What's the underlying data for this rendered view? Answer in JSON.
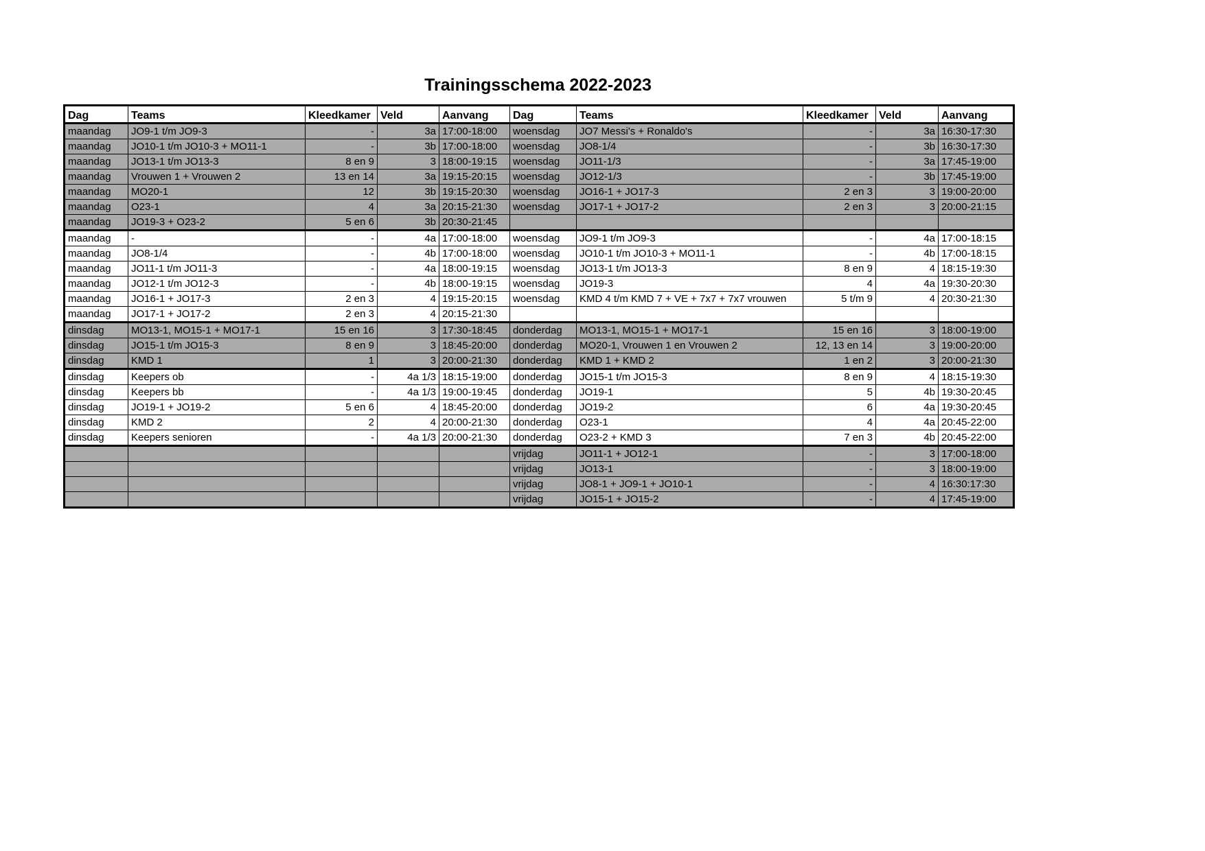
{
  "title": "Trainingsschema 2022-2023",
  "colors": {
    "row_shade": "#ABABAB",
    "grid": "#000000",
    "page_background": "#FFFFFF"
  },
  "table": {
    "headers": [
      "Dag",
      "Teams",
      "Kleedkamer",
      "Veld",
      "Aanvang"
    ],
    "thick_top_rows": [
      7,
      13,
      16,
      21
    ],
    "left_rows": [
      {
        "dag": "maandag",
        "teams": "JO9-1 t/m JO9-3",
        "kleedkamer": "-",
        "veld": "3a",
        "aanvang": "17:00-18:00",
        "shade": "gray"
      },
      {
        "dag": "maandag",
        "teams": "JO10-1 t/m JO10-3 + MO11-1",
        "kleedkamer": "-",
        "veld": "3b",
        "aanvang": "17:00-18:00",
        "shade": "gray"
      },
      {
        "dag": "maandag",
        "teams": "JO13-1 t/m JO13-3",
        "kleedkamer": "8 en 9",
        "veld": "3",
        "aanvang": "18:00-19:15",
        "shade": "gray"
      },
      {
        "dag": "maandag",
        "teams": "Vrouwen 1 + Vrouwen 2",
        "kleedkamer": "13 en 14",
        "veld": "3a",
        "aanvang": "19:15-20:15",
        "shade": "gray"
      },
      {
        "dag": "maandag",
        "teams": "MO20-1",
        "kleedkamer": "12",
        "veld": "3b",
        "aanvang": "19:15-20:30",
        "shade": "gray"
      },
      {
        "dag": "maandag",
        "teams": "O23-1",
        "kleedkamer": "4",
        "veld": "3a",
        "aanvang": "20:15-21:30",
        "shade": "gray"
      },
      {
        "dag": "maandag",
        "teams": "JO19-3 + O23-2",
        "kleedkamer": "5 en 6",
        "veld": "3b",
        "aanvang": "20:30-21:45",
        "shade": "gray"
      },
      {
        "dag": "maandag",
        "teams": "-",
        "kleedkamer": "-",
        "veld": "4a",
        "aanvang": "17:00-18:00",
        "shade": "white"
      },
      {
        "dag": "maandag",
        "teams": "JO8-1/4",
        "kleedkamer": "-",
        "veld": "4b",
        "aanvang": "17:00-18:00",
        "shade": "white"
      },
      {
        "dag": "maandag",
        "teams": "JO11-1 t/m JO11-3",
        "kleedkamer": "-",
        "veld": "4a",
        "aanvang": "18:00-19:15",
        "shade": "white"
      },
      {
        "dag": "maandag",
        "teams": "JO12-1 t/m JO12-3",
        "kleedkamer": "-",
        "veld": "4b",
        "aanvang": "18:00-19:15",
        "shade": "white"
      },
      {
        "dag": "maandag",
        "teams": "JO16-1 + JO17-3",
        "kleedkamer": "2 en 3",
        "veld": "4",
        "aanvang": "19:15-20:15",
        "shade": "white"
      },
      {
        "dag": "maandag",
        "teams": "JO17-1 + JO17-2",
        "kleedkamer": "2 en 3",
        "veld": "4",
        "aanvang": "20:15-21:30",
        "shade": "white"
      },
      {
        "dag": "dinsdag",
        "teams": "MO13-1, MO15-1 + MO17-1",
        "kleedkamer": "15 en 16",
        "veld": "3",
        "aanvang": "17:30-18:45",
        "shade": "gray"
      },
      {
        "dag": "dinsdag",
        "teams": "JO15-1 t/m JO15-3",
        "kleedkamer": "8 en 9",
        "veld": "3",
        "aanvang": "18:45-20:00",
        "shade": "gray"
      },
      {
        "dag": "dinsdag",
        "teams": "KMD 1",
        "kleedkamer": "1",
        "veld": "3",
        "aanvang": "20:00-21:30",
        "shade": "gray"
      },
      {
        "dag": "dinsdag",
        "teams": "Keepers ob",
        "kleedkamer": "-",
        "veld": "4a 1/3",
        "aanvang": "18:15-19:00",
        "shade": "white"
      },
      {
        "dag": "dinsdag",
        "teams": "Keepers bb",
        "kleedkamer": "-",
        "veld": "4a 1/3",
        "aanvang": "19:00-19:45",
        "shade": "white"
      },
      {
        "dag": "dinsdag",
        "teams": "JO19-1 + JO19-2",
        "kleedkamer": "5 en 6",
        "veld": "4",
        "aanvang": "18:45-20:00",
        "shade": "white"
      },
      {
        "dag": "dinsdag",
        "teams": "KMD 2",
        "kleedkamer": "2",
        "veld": "4",
        "aanvang": "20:00-21:30",
        "shade": "white"
      },
      {
        "dag": "dinsdag",
        "teams": "Keepers senioren",
        "kleedkamer": "-",
        "veld": "4a 1/3",
        "aanvang": "20:00-21:30",
        "shade": "white"
      },
      {
        "dag": "",
        "teams": "",
        "kleedkamer": "",
        "veld": "",
        "aanvang": "",
        "shade": "gray"
      },
      {
        "dag": "",
        "teams": "",
        "kleedkamer": "",
        "veld": "",
        "aanvang": "",
        "shade": "gray"
      },
      {
        "dag": "",
        "teams": "",
        "kleedkamer": "",
        "veld": "",
        "aanvang": "",
        "shade": "gray"
      },
      {
        "dag": "",
        "teams": "",
        "kleedkamer": "",
        "veld": "",
        "aanvang": "",
        "shade": "gray"
      }
    ],
    "right_rows": [
      {
        "dag": "woensdag",
        "teams": "JO7 Messi's + Ronaldo's",
        "kleedkamer": "-",
        "veld": "3a",
        "aanvang": "16:30-17:30",
        "shade": "gray"
      },
      {
        "dag": "woensdag",
        "teams": "JO8-1/4",
        "kleedkamer": "-",
        "veld": "3b",
        "aanvang": "16:30-17:30",
        "shade": "gray"
      },
      {
        "dag": "woensdag",
        "teams": "JO11-1/3",
        "kleedkamer": "-",
        "veld": "3a",
        "aanvang": "17:45-19:00",
        "shade": "gray"
      },
      {
        "dag": "woensdag",
        "teams": "JO12-1/3",
        "kleedkamer": "-",
        "veld": "3b",
        "aanvang": "17:45-19:00",
        "shade": "gray"
      },
      {
        "dag": "woensdag",
        "teams": "JO16-1 + JO17-3",
        "kleedkamer": "2 en 3",
        "veld": "3",
        "aanvang": "19:00-20:00",
        "shade": "gray"
      },
      {
        "dag": "woensdag",
        "teams": "JO17-1 + JO17-2",
        "kleedkamer": "2 en 3",
        "veld": "3",
        "aanvang": "20:00-21:15",
        "shade": "gray"
      },
      {
        "dag": "",
        "teams": "",
        "kleedkamer": "",
        "veld": "",
        "aanvang": "",
        "shade": "gray"
      },
      {
        "dag": "woensdag",
        "teams": "JO9-1 t/m JO9-3",
        "kleedkamer": "-",
        "veld": "4a",
        "aanvang": "17:00-18:15",
        "shade": "white"
      },
      {
        "dag": "woensdag",
        "teams": "JO10-1 t/m JO10-3 + MO11-1",
        "kleedkamer": "-",
        "veld": "4b",
        "aanvang": "17:00-18:15",
        "shade": "white"
      },
      {
        "dag": "woensdag",
        "teams": "JO13-1 t/m JO13-3",
        "kleedkamer": "8 en 9",
        "veld": "4",
        "aanvang": "18:15-19:30",
        "shade": "white"
      },
      {
        "dag": "woensdag",
        "teams": "JO19-3",
        "kleedkamer": "4",
        "veld": "4a",
        "aanvang": "19:30-20:30",
        "shade": "white"
      },
      {
        "dag": "woensdag",
        "teams": "KMD 4 t/m KMD 7 + VE + 7x7 + 7x7 vrouwen",
        "kleedkamer": "5 t/m 9",
        "veld": "4",
        "aanvang": "20:30-21:30",
        "shade": "white"
      },
      {
        "dag": "",
        "teams": "",
        "kleedkamer": "",
        "veld": "",
        "aanvang": "",
        "shade": "white"
      },
      {
        "dag": "donderdag",
        "teams": "MO13-1, MO15-1 + MO17-1",
        "kleedkamer": "15 en 16",
        "veld": "3",
        "aanvang": "18:00-19:00",
        "shade": "gray"
      },
      {
        "dag": "donderdag",
        "teams": "MO20-1, Vrouwen 1 en Vrouwen 2",
        "kleedkamer": "12, 13 en 14",
        "veld": "3",
        "aanvang": "19:00-20:00",
        "shade": "gray"
      },
      {
        "dag": "donderdag",
        "teams": "KMD 1 + KMD 2",
        "kleedkamer": "1 en 2",
        "veld": "3",
        "aanvang": "20:00-21:30",
        "shade": "gray"
      },
      {
        "dag": "donderdag",
        "teams": "JO15-1 t/m JO15-3",
        "kleedkamer": "8 en 9",
        "veld": "4",
        "aanvang": "18:15-19:30",
        "shade": "white"
      },
      {
        "dag": "donderdag",
        "teams": "JO19-1",
        "kleedkamer": "5",
        "veld": "4b",
        "aanvang": "19:30-20:45",
        "shade": "white"
      },
      {
        "dag": "donderdag",
        "teams": "JO19-2",
        "kleedkamer": "6",
        "veld": "4a",
        "aanvang": "19:30-20:45",
        "shade": "white"
      },
      {
        "dag": "donderdag",
        "teams": "O23-1",
        "kleedkamer": "4",
        "veld": "4a",
        "aanvang": "20:45-22:00",
        "shade": "white"
      },
      {
        "dag": "donderdag",
        "teams": "O23-2 + KMD 3",
        "kleedkamer": "7 en 3",
        "veld": "4b",
        "aanvang": "20:45-22:00",
        "shade": "white"
      },
      {
        "dag": "vrijdag",
        "teams": "JO11-1 + JO12-1",
        "kleedkamer": "-",
        "veld": "3",
        "aanvang": "17:00-18:00",
        "shade": "gray"
      },
      {
        "dag": "vrijdag",
        "teams": "JO13-1",
        "kleedkamer": "-",
        "veld": "3",
        "aanvang": "18:00-19:00",
        "shade": "gray"
      },
      {
        "dag": "vrijdag",
        "teams": "JO8-1 + JO9-1 + JO10-1",
        "kleedkamer": "-",
        "veld": "4",
        "aanvang": "16:30:17:30",
        "shade": "gray"
      },
      {
        "dag": "vrijdag",
        "teams": "JO15-1 + JO15-2",
        "kleedkamer": "-",
        "veld": "4",
        "aanvang": "17:45-19:00",
        "shade": "gray"
      }
    ]
  }
}
